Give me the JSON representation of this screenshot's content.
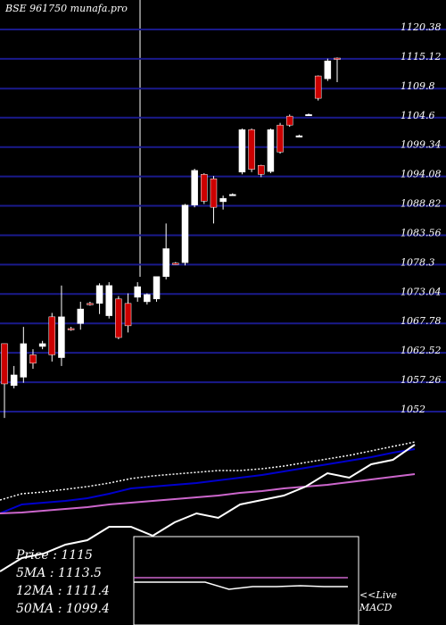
{
  "chart_data": {
    "type": "candlestick",
    "title": "BSE 961750 munafa.pro",
    "ylim": [
      1052,
      1120.38
    ],
    "yticks": [
      1120.38,
      1115.12,
      1109.8,
      1104.6,
      1099.34,
      1094.08,
      1088.82,
      1083.56,
      1078.3,
      1073.04,
      1067.78,
      1062.52,
      1057.26,
      1052
    ],
    "grid": true,
    "up_color": "#ffffff",
    "down_color": "#cc0000",
    "open": [
      1064,
      1056.5,
      1058,
      1062,
      1063.5,
      1068.8,
      1061.5,
      1066.7,
      1067.6,
      1071.2,
      1071.2,
      1069,
      1072,
      1071.2,
      1072.3,
      1071.5,
      1072,
      1076,
      1078.4,
      1078.5,
      1088.8,
      1094.3,
      1093.5,
      1089.4,
      1090.7,
      1094.7,
      1102.3,
      1095.9,
      1094.8,
      1103.1,
      1104.7,
      1101.2,
      1105,
      1111.9,
      1111.4,
      1115.1
    ],
    "high": [
      1064,
      1060,
      1067,
      1063,
      1064.5,
      1069.5,
      1074.4,
      1067,
      1071.5,
      1071.5,
      1074.8,
      1075,
      1072.5,
      1073,
      1075,
      1073,
      1076,
      1085.5,
      1078.6,
      1089,
      1095.3,
      1094.5,
      1094,
      1090.5,
      1090.9,
      1102.5,
      1102.5,
      1096,
      1102.5,
      1103.5,
      1105,
      1101.4,
      1105.2,
      1112,
      1115,
      1115.2
    ],
    "low": [
      1050.7,
      1056,
      1057,
      1059.5,
      1063,
      1060.8,
      1060,
      1066.3,
      1066.5,
      1070.8,
      1069.3,
      1068.5,
      1064.8,
      1066,
      1071.5,
      1071,
      1071.5,
      1075.5,
      1078.1,
      1078,
      1088.4,
      1089,
      1085.5,
      1088,
      1090.5,
      1094.3,
      1094.7,
      1093.8,
      1094.5,
      1098,
      1102.8,
      1101,
      1104.8,
      1107.5,
      1111,
      1110.8
    ],
    "close": [
      1056.8,
      1058.4,
      1064,
      1060.5,
      1064,
      1062,
      1068.8,
      1066.5,
      1070.2,
      1071,
      1074.4,
      1074.4,
      1065.1,
      1067.2,
      1074.2,
      1072.8,
      1076,
      1081,
      1078.3,
      1088.8,
      1095,
      1089.5,
      1088.4,
      1090,
      1090.7,
      1102.3,
      1095.2,
      1094.3,
      1102.3,
      1098.3,
      1103.1,
      1101.2,
      1105,
      1107.9,
      1114.6,
      1115
    ],
    "panel_ylim": [
      0,
      110
    ],
    "panel_series": [
      {
        "color": "#ffffff",
        "dotted": true,
        "values": [
          70,
          73.5,
          74.5,
          76,
          77.5,
          79.5,
          82,
          83.5,
          84.5,
          85.5,
          86.5,
          86.5,
          87.5,
          89,
          91,
          93,
          95,
          97.5,
          100,
          102.5
        ]
      },
      {
        "color": "#0000cc",
        "values": [
          62.5,
          67.5,
          68.5,
          69.5,
          71,
          73.5,
          76.5,
          77.5,
          78.5,
          79.5,
          81,
          82.5,
          84,
          86,
          88,
          90,
          92,
          94,
          96.5,
          98.5
        ]
      },
      {
        "color": "#cc66cc",
        "values": [
          62.5,
          63,
          64,
          65,
          66,
          67.5,
          68.5,
          69.5,
          70.5,
          71.5,
          72.5,
          74,
          75,
          76.5,
          77.5,
          78.5,
          80,
          81.5,
          83,
          84.5
        ]
      },
      {
        "color": "#ffffff",
        "values": [
          30,
          37.5,
          40,
          45,
          47.5,
          55,
          55,
          50,
          57.5,
          62.5,
          60,
          67.5,
          70,
          72.5,
          77.5,
          85,
          82.5,
          90,
          92.5,
          101
        ]
      }
    ],
    "macd_series": [
      {
        "color": "#cc66cc",
        "values": [
          26.5,
          26.5,
          26.5,
          26.5,
          26.5,
          26.5,
          26.5,
          26.5,
          26.5,
          26.5
        ]
      },
      {
        "color": "#ffffff",
        "values": [
          24,
          24,
          24,
          24,
          20,
          21.5,
          21.5,
          22,
          21.5,
          21.5
        ]
      }
    ],
    "legend": [
      "Price : 1115",
      "5MA : 1113.5",
      "12MA : 1111.4",
      "50MA : 1099.4"
    ],
    "live_label": "<<Live",
    "macd_label": "MACD"
  }
}
